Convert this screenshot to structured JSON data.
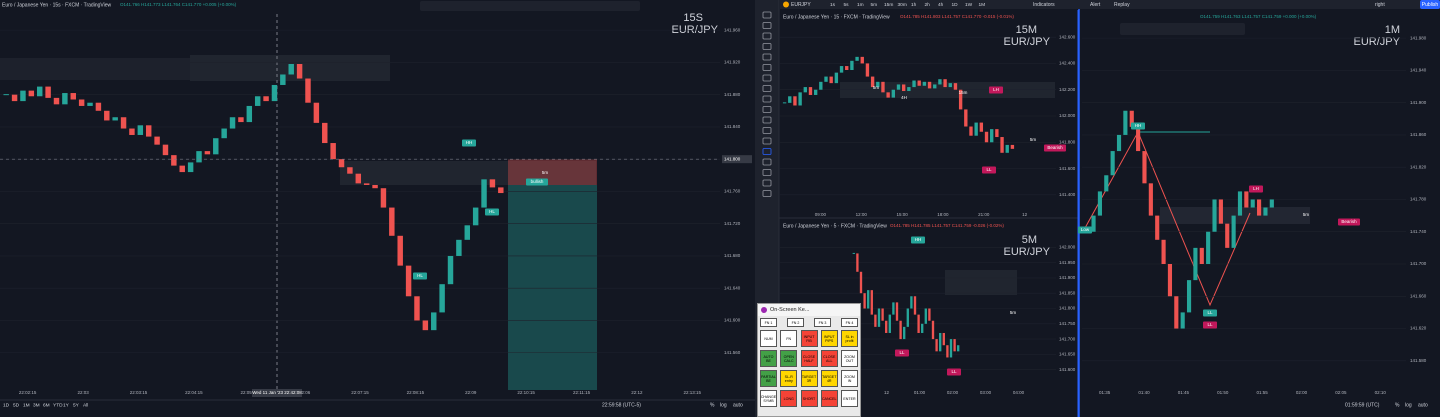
{
  "topbar": {
    "symbol": "EURJPY",
    "timeframes": [
      "1s",
      "5s",
      "1m",
      "5m",
      "15m",
      "30m",
      "1h",
      "2h",
      "4h",
      "1D",
      "1W",
      "1M"
    ],
    "indicators": "Indicators",
    "alert": "Alert",
    "replay": "Replay",
    "layout": "right",
    "publish": "Publish"
  },
  "charts": [
    {
      "type": "candlestick",
      "title": "Euro / Japanese Yen · 15s · FXCM · TradingView",
      "ohlc": "O141.766 H141.773 L141.764 C141.770 +0.005 (+0.00%)",
      "timeframe_label": "15S",
      "symbol_label": "EUR/JPY",
      "up_color": "#26a69a",
      "down_color": "#ef5350",
      "closes": [
        141.88,
        141.872,
        141.885,
        141.878,
        141.89,
        141.876,
        141.868,
        141.882,
        141.874,
        141.866,
        141.87,
        141.86,
        141.848,
        141.852,
        141.838,
        141.83,
        141.842,
        141.828,
        141.818,
        141.805,
        141.792,
        141.784,
        141.796,
        141.81,
        141.806,
        141.826,
        141.838,
        141.852,
        141.846,
        141.866,
        141.878,
        141.872,
        141.892,
        141.905,
        141.918,
        141.9,
        141.87,
        141.845,
        141.82,
        141.8,
        141.79,
        141.782,
        141.77,
        141.768,
        141.764,
        141.74,
        141.705,
        141.668,
        141.63,
        141.6,
        141.588,
        141.61,
        141.645,
        141.68,
        141.7,
        141.718,
        141.74,
        141.775,
        141.765,
        141.758
      ],
      "ylim": [
        141.52,
        141.98
      ],
      "yticks": [
        {
          "value": 141.56,
          "label": "141.560"
        },
        {
          "value": 141.6,
          "label": "141.600"
        },
        {
          "value": 141.64,
          "label": "141.640"
        },
        {
          "value": 141.68,
          "label": "141.680"
        },
        {
          "value": 141.72,
          "label": "141.720"
        },
        {
          "value": 141.76,
          "label": "141.760"
        },
        {
          "value": 141.8,
          "label": "141.800"
        },
        {
          "value": 141.84,
          "label": "141.840"
        },
        {
          "value": 141.88,
          "label": "141.880"
        },
        {
          "value": 141.92,
          "label": "141.920"
        },
        {
          "value": 141.96,
          "label": "141.960"
        }
      ],
      "xticks": [
        "22:02:15",
        "22:03",
        "22:03:15",
        "22:04:15",
        "22:05:15",
        "22:06",
        "22:07:15",
        "22:08:15",
        "22:09",
        "22:10:15",
        "22:11:15",
        "22:12",
        "22:13:15"
      ],
      "crosshair_price": {
        "value": 141.8,
        "label": "141.800"
      },
      "crosshair_time": "Wed 11 Jan '23  22:42:08",
      "annotations": [
        {
          "text": "HH",
          "color": "#26a69a"
        },
        {
          "text": "HL",
          "color": "#26a69a"
        },
        {
          "text": "HL",
          "color": "#26a69a"
        },
        {
          "text": "5m",
          "color": "none"
        },
        {
          "text": "bullish",
          "color": "#26a69a"
        }
      ]
    },
    {
      "type": "candlestick",
      "title": "Euro / Japanese Yen · 15 · FXCM · TradingView",
      "ohlc": "O141.785 H141.803 L141.757 C141.770 -0.015 (-0.01%)",
      "timeframe_label": "15M",
      "symbol_label": "EUR/JPY",
      "up_color": "#26a69a",
      "down_color": "#ef5350",
      "closes": [
        142.1,
        142.15,
        142.08,
        142.18,
        142.22,
        142.16,
        142.2,
        142.26,
        142.3,
        142.25,
        142.33,
        142.38,
        142.35,
        142.42,
        142.45,
        142.4,
        142.3,
        142.22,
        142.26,
        142.18,
        142.14,
        142.2,
        142.24,
        142.19,
        142.22,
        142.27,
        142.23,
        142.26,
        142.21,
        142.24,
        142.28,
        142.22,
        142.25,
        142.2,
        142.05,
        141.92,
        141.85,
        141.95,
        141.88,
        141.8,
        141.9,
        141.84,
        141.72,
        141.78,
        141.75
      ],
      "ylim": [
        141.3,
        142.7
      ],
      "yticks": [
        {
          "value": 141.4,
          "label": "141.400"
        },
        {
          "value": 141.6,
          "label": "141.600"
        },
        {
          "value": 141.8,
          "label": "141.800"
        },
        {
          "value": 142,
          "label": "142.000"
        },
        {
          "value": 142.2,
          "label": "142.200"
        },
        {
          "value": 142.4,
          "label": "142.400"
        },
        {
          "value": 142.6,
          "label": "142.600"
        }
      ],
      "xticks": [
        "09:00",
        "12:00",
        "15:00",
        "18:00",
        "21:00",
        "12"
      ],
      "annotations": [
        {
          "text": "5m",
          "color": "none"
        },
        {
          "text": "4H",
          "color": "none"
        },
        {
          "text": "15m",
          "color": "none"
        },
        {
          "text": "LH",
          "color": "#c2185b"
        },
        {
          "text": "5m",
          "color": "none"
        },
        {
          "text": "Bearish",
          "color": "#c2185b"
        },
        {
          "text": "LL",
          "color": "#c2185b"
        }
      ]
    },
    {
      "type": "candlestick",
      "title": "Euro / Japanese Yen · 5 · FXCM · TradingView",
      "ohlc": "O141.785 H141.785 L141.757 C141.759 -0.026 (-0.02%)",
      "timeframe_label": "5M",
      "symbol_label": "EUR/JPY",
      "up_color": "#26a69a",
      "down_color": "#ef5350",
      "closes": [
        141.98,
        141.92,
        141.85,
        141.8,
        141.86,
        141.78,
        141.74,
        141.8,
        141.76,
        141.72,
        141.78,
        141.82,
        141.76,
        141.7,
        141.74,
        141.8,
        141.84,
        141.78,
        141.72,
        141.75,
        141.8,
        141.76,
        141.7,
        141.66,
        141.72,
        141.68,
        141.64,
        141.7,
        141.66,
        141.68
      ],
      "ylim": [
        141.55,
        142.05
      ],
      "yticks": [
        {
          "value": 141.6,
          "label": "141.600"
        },
        {
          "value": 141.65,
          "label": "141.650"
        },
        {
          "value": 141.7,
          "label": "141.700"
        },
        {
          "value": 141.75,
          "label": "141.750"
        },
        {
          "value": 141.8,
          "label": "141.800"
        },
        {
          "value": 141.85,
          "label": "141.850"
        },
        {
          "value": 141.9,
          "label": "141.900"
        },
        {
          "value": 141.95,
          "label": "141.950"
        },
        {
          "value": 142,
          "label": "142.000"
        }
      ],
      "xticks": [
        "12",
        "01:00",
        "02:00",
        "03:00",
        "04:00"
      ],
      "annotations": [
        {
          "text": "HH",
          "color": "#26a69a"
        },
        {
          "text": "5m",
          "color": "none"
        },
        {
          "text": "LL",
          "color": "#c2185b"
        },
        {
          "text": "LL",
          "color": "#c2185b"
        }
      ]
    },
    {
      "type": "candlestick",
      "title": "",
      "ohlc": "O141.759 H141.763 L141.757 C141.759 +0.000 (+0.00%)",
      "timeframe_label": "1M",
      "symbol_label": "EUR/JPY",
      "up_color": "#26a69a",
      "down_color": "#ef5350",
      "closes": [
        141.74,
        141.76,
        141.79,
        141.81,
        141.84,
        141.86,
        141.89,
        141.87,
        141.84,
        141.8,
        141.76,
        141.73,
        141.7,
        141.66,
        141.62,
        141.64,
        141.68,
        141.72,
        141.7,
        141.74,
        141.78,
        141.75,
        141.72,
        141.76,
        141.79,
        141.77,
        141.78,
        141.76,
        141.77,
        141.78
      ],
      "ylim": [
        141.55,
        142.0
      ],
      "yticks": [
        {
          "value": 141.58,
          "label": "141.580"
        },
        {
          "value": 141.62,
          "label": "141.620"
        },
        {
          "value": 141.66,
          "label": "141.660"
        },
        {
          "value": 141.7,
          "label": "141.700"
        },
        {
          "value": 141.74,
          "label": "141.740"
        },
        {
          "value": 141.78,
          "label": "141.780"
        },
        {
          "value": 141.82,
          "label": "141.820"
        },
        {
          "value": 141.86,
          "label": "141.860"
        },
        {
          "value": 141.9,
          "label": "141.900"
        },
        {
          "value": 141.94,
          "label": "141.940"
        },
        {
          "value": 141.98,
          "label": "141.980"
        }
      ],
      "xticks": [
        "01:35",
        "01:40",
        "01:45",
        "01:50",
        "01:55",
        "02:00",
        "02:05",
        "02:10"
      ],
      "annotations": [
        {
          "text": "HH",
          "color": "#26a69a"
        },
        {
          "text": "Low",
          "color": "#26a69a"
        },
        {
          "text": "LH",
          "color": "#c2185b"
        },
        {
          "text": "5m",
          "color": "none"
        },
        {
          "text": "Bearish",
          "color": "#c2185b"
        },
        {
          "text": "LL",
          "color": "#26a69a"
        },
        {
          "text": "LL",
          "color": "#c2185b"
        }
      ]
    }
  ],
  "bottom_left": {
    "ranges": [
      "1D",
      "5D",
      "1M",
      "3M",
      "6M",
      "YTD",
      "1Y",
      "5Y",
      "All"
    ],
    "clock": "22:59:58 (UTC-5)",
    "percent": "%",
    "log": "log",
    "auto": "auto"
  },
  "bottom_right": {
    "clock": "01:59:59 (UTC)",
    "percent": "%",
    "log": "log",
    "auto": "auto"
  },
  "keyboard": {
    "title": "On-Screen Ke...",
    "rows": [
      [
        {
          "label": "FN 1",
          "color": "#ffffff"
        },
        {
          "label": "FN 2",
          "color": "#ffffff"
        },
        {
          "label": "FN 3",
          "color": "#ffffff"
        },
        {
          "label": "FN 4",
          "color": "#ffffff"
        }
      ],
      [
        {
          "label": "NUM",
          "color": "#ffffff"
        },
        {
          "label": "FN",
          "color": "#ffffff"
        },
        {
          "label": "INPUT FIB",
          "color": "#f44336"
        },
        {
          "label": "INPUT PIPS",
          "color": "#ffd600"
        },
        {
          "label": "SL in profit",
          "color": "#ffd600"
        }
      ],
      [
        {
          "label": "AUTO BE",
          "color": "#43a047"
        },
        {
          "label": "OPEN CALC",
          "color": "#43a047"
        },
        {
          "label": "CLOSE HALF",
          "color": "#f44336"
        },
        {
          "label": "CLOSE ALL",
          "color": "#f44336"
        },
        {
          "label": "ZOOM OUT",
          "color": "#ffffff"
        }
      ],
      [
        {
          "label": "PARTIAL BE",
          "color": "#43a047"
        },
        {
          "label": "SL-R entry",
          "color": "#ffd600"
        },
        {
          "label": "TARGET 3R",
          "color": "#ffd600"
        },
        {
          "label": "TARGET 4R",
          "color": "#ffd600"
        },
        {
          "label": "ZOOM IN",
          "color": "#ffffff"
        }
      ],
      [
        {
          "label": "CHANGE SYMB",
          "color": "#ffffff"
        },
        {
          "label": "LONG",
          "color": "#f44336"
        },
        {
          "label": "SHORT",
          "color": "#f44336"
        },
        {
          "label": "CANCEL",
          "color": "#f44336"
        },
        {
          "label": "ENTER",
          "color": "#ffffff"
        }
      ]
    ]
  }
}
